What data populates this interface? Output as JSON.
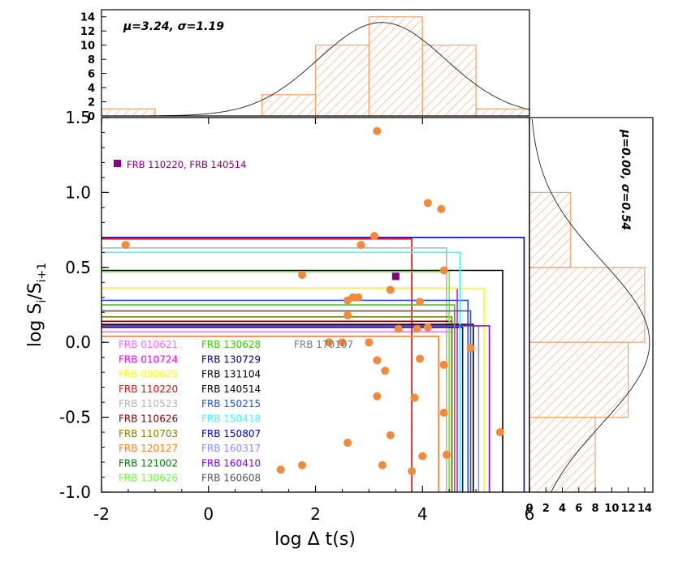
{
  "colors": {
    "scatter": "#f08a3c",
    "hist_fill": "#f4a36a",
    "hist_edge": "#f4a36a",
    "fit_curve": "#222222",
    "marker": "#800080"
  },
  "chart_data": [
    {
      "id": "main",
      "type": "scatter",
      "xlabel": "log Δ t(s)",
      "ylabel": "log S_i/S_i+1",
      "xlim": [
        -2,
        6
      ],
      "ylim": [
        -1.0,
        1.5
      ],
      "xticks": [
        "-2",
        "0",
        "2",
        "4",
        "6"
      ],
      "xtick_values": [
        -2,
        0,
        2,
        4,
        6
      ],
      "yticks": [
        "1.5",
        "1.0",
        "0.5",
        "0.0",
        "-0.5",
        "-1.0"
      ],
      "ytick_values": [
        1.5,
        1.0,
        0.5,
        0.0,
        -0.5,
        -1.0
      ],
      "highlight": {
        "label": "FRB 110220, FRB 140514",
        "legend_x": -1.7,
        "legend_y": 1.18,
        "point": [
          3.5,
          0.44
        ]
      },
      "points": [
        [
          -1.55,
          0.65
        ],
        [
          1.75,
          0.45
        ],
        [
          3.15,
          1.41
        ],
        [
          4.1,
          0.93
        ],
        [
          4.35,
          0.89
        ],
        [
          3.1,
          0.71
        ],
        [
          2.85,
          0.65
        ],
        [
          4.4,
          0.48
        ],
        [
          3.4,
          0.35
        ],
        [
          3.95,
          0.27
        ],
        [
          2.6,
          0.28
        ],
        [
          2.7,
          0.3
        ],
        [
          2.8,
          0.3
        ],
        [
          2.6,
          0.18
        ],
        [
          3.55,
          0.09
        ],
        [
          3.9,
          0.09
        ],
        [
          4.1,
          0.1
        ],
        [
          2.25,
          0.0
        ],
        [
          2.5,
          0.0
        ],
        [
          3.0,
          0.0
        ],
        [
          4.9,
          -0.04
        ],
        [
          3.15,
          -0.12
        ],
        [
          3.95,
          -0.11
        ],
        [
          4.4,
          -0.15
        ],
        [
          3.3,
          -0.19
        ],
        [
          3.15,
          -0.36
        ],
        [
          3.85,
          -0.37
        ],
        [
          4.4,
          -0.47
        ],
        [
          3.4,
          -0.62
        ],
        [
          5.45,
          -0.6
        ],
        [
          2.6,
          -0.67
        ],
        [
          4.0,
          -0.76
        ],
        [
          4.45,
          -0.75
        ],
        [
          1.75,
          -0.82
        ],
        [
          3.25,
          -0.82
        ],
        [
          1.35,
          -0.85
        ],
        [
          3.8,
          -0.86
        ]
      ],
      "limit_boxes": [
        {
          "label": "FRB 010621",
          "color": "#ff66ff",
          "x": 4.55,
          "y": 0.07
        },
        {
          "label": "FRB 010724",
          "color": "#ff00ff",
          "x": 4.65,
          "y": 0.36
        },
        {
          "label": "FRB 090625",
          "color": "#ffff00",
          "x": 5.15,
          "y": 0.36
        },
        {
          "label": "FRB 110220",
          "color": "#ff0000",
          "x": 3.8,
          "y": 0.69
        },
        {
          "label": "FRB 110523",
          "color": "#b4b4b4",
          "x": 4.45,
          "y": 0.63
        },
        {
          "label": "FRB 110626",
          "color": "#800000",
          "x": 4.55,
          "y": 0.14
        },
        {
          "label": "FRB 110703",
          "color": "#808000",
          "x": 4.55,
          "y": 0.17
        },
        {
          "label": "FRB 120127",
          "color": "#ff7f27",
          "x": 4.3,
          "y": 0.04
        },
        {
          "label": "FRB 121002",
          "color": "#008000",
          "x": 4.5,
          "y": 0.21
        },
        {
          "label": "FRB 130626",
          "color": "#66ff33",
          "x": 4.5,
          "y": 0.47
        },
        {
          "label": "FRB 130628",
          "color": "#33cc00",
          "x": 4.6,
          "y": 0.25
        },
        {
          "label": "FRB 130729",
          "color": "#000080",
          "x": 4.75,
          "y": 0.1
        },
        {
          "label": "FRB 131104",
          "color": "#000000",
          "x": 4.95,
          "y": 0.12
        },
        {
          "label": "FRB 140514",
          "color": "#000000",
          "x": 5.5,
          "y": 0.48
        },
        {
          "label": "FRB 150215",
          "color": "#1f4fff",
          "x": 4.85,
          "y": 0.28
        },
        {
          "label": "FRB 150418",
          "color": "#33ffff",
          "x": 4.7,
          "y": 0.6
        },
        {
          "label": "FRB 150807",
          "color": "#0000cc",
          "x": 5.9,
          "y": 0.7
        },
        {
          "label": "FRB 160317",
          "color": "#8c8cff",
          "x": 5.05,
          "y": 0.11
        },
        {
          "label": "FRB 160410",
          "color": "#8000ff",
          "x": 5.25,
          "y": 0.11
        },
        {
          "label": "FRB 160608",
          "color": "#555555",
          "x": 4.9,
          "y": 0.21
        },
        {
          "label": "FRB 170107",
          "color": "#777777",
          "x": 4.6,
          "y": 0.21
        }
      ]
    },
    {
      "id": "top-hist",
      "type": "histogram",
      "annotation": "μ=3.24, σ=1.19",
      "xlim": [
        -2,
        6
      ],
      "ylim": [
        0,
        15
      ],
      "yticks": [
        "0",
        "2",
        "4",
        "6",
        "8",
        "10",
        "12",
        "14"
      ],
      "ytick_values": [
        0,
        2,
        4,
        6,
        8,
        10,
        12,
        14
      ],
      "bin_edges": [
        -2,
        -1,
        0,
        1,
        2,
        3,
        4,
        5,
        6
      ],
      "counts": [
        1,
        0,
        0,
        3,
        10,
        14,
        10,
        1
      ],
      "fit": {
        "mu": 3.24,
        "sigma": 1.19,
        "peak": 13.2
      }
    },
    {
      "id": "right-hist",
      "type": "histogram",
      "orientation": "horizontal",
      "annotation": "μ=0.00, σ=0.54",
      "xlim": [
        0,
        15
      ],
      "ylim": [
        -1.0,
        1.5
      ],
      "xticks": [
        "0",
        "2",
        "4",
        "6",
        "8",
        "10",
        "12",
        "14"
      ],
      "xtick_values": [
        0,
        2,
        4,
        6,
        8,
        10,
        12,
        14
      ],
      "bin_edges": [
        -1.0,
        -0.5,
        0.0,
        0.5,
        1.0,
        1.5
      ],
      "counts": [
        8,
        12,
        14,
        5,
        0
      ],
      "fit": {
        "mu": 0.0,
        "sigma": 0.54,
        "peak": 14.6
      }
    }
  ]
}
